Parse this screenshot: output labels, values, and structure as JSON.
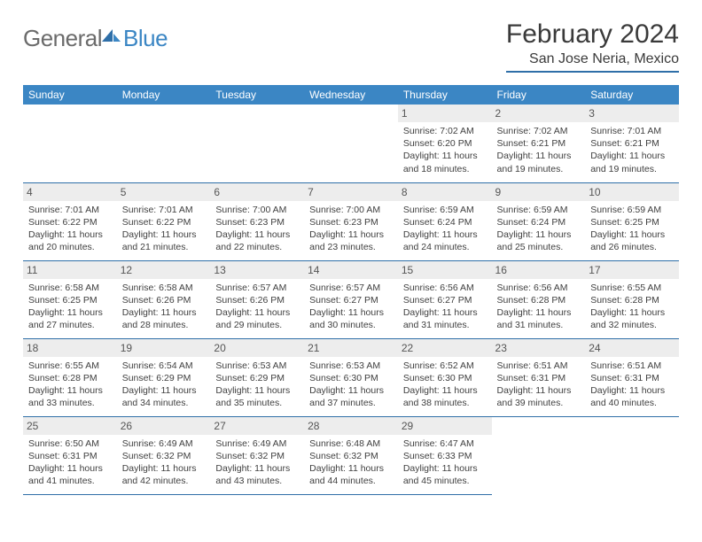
{
  "logo": {
    "part1": "General",
    "part2": "Blue"
  },
  "title": "February 2024",
  "location": "San Jose Neria, Mexico",
  "colors": {
    "header_bg": "#3b86c4",
    "header_text": "#ffffff",
    "rule": "#2f6fa8",
    "daynum_bg": "#ededed",
    "body_text": "#404040",
    "title_text": "#3a3a3a",
    "logo_gray": "#6b6b6b",
    "logo_blue": "#3b86c4"
  },
  "weekdays": [
    "Sunday",
    "Monday",
    "Tuesday",
    "Wednesday",
    "Thursday",
    "Friday",
    "Saturday"
  ],
  "first_weekday_index": 4,
  "days": [
    {
      "n": 1,
      "sunrise": "7:02 AM",
      "sunset": "6:20 PM",
      "daylight": "11 hours and 18 minutes."
    },
    {
      "n": 2,
      "sunrise": "7:02 AM",
      "sunset": "6:21 PM",
      "daylight": "11 hours and 19 minutes."
    },
    {
      "n": 3,
      "sunrise": "7:01 AM",
      "sunset": "6:21 PM",
      "daylight": "11 hours and 19 minutes."
    },
    {
      "n": 4,
      "sunrise": "7:01 AM",
      "sunset": "6:22 PM",
      "daylight": "11 hours and 20 minutes."
    },
    {
      "n": 5,
      "sunrise": "7:01 AM",
      "sunset": "6:22 PM",
      "daylight": "11 hours and 21 minutes."
    },
    {
      "n": 6,
      "sunrise": "7:00 AM",
      "sunset": "6:23 PM",
      "daylight": "11 hours and 22 minutes."
    },
    {
      "n": 7,
      "sunrise": "7:00 AM",
      "sunset": "6:23 PM",
      "daylight": "11 hours and 23 minutes."
    },
    {
      "n": 8,
      "sunrise": "6:59 AM",
      "sunset": "6:24 PM",
      "daylight": "11 hours and 24 minutes."
    },
    {
      "n": 9,
      "sunrise": "6:59 AM",
      "sunset": "6:24 PM",
      "daylight": "11 hours and 25 minutes."
    },
    {
      "n": 10,
      "sunrise": "6:59 AM",
      "sunset": "6:25 PM",
      "daylight": "11 hours and 26 minutes."
    },
    {
      "n": 11,
      "sunrise": "6:58 AM",
      "sunset": "6:25 PM",
      "daylight": "11 hours and 27 minutes."
    },
    {
      "n": 12,
      "sunrise": "6:58 AM",
      "sunset": "6:26 PM",
      "daylight": "11 hours and 28 minutes."
    },
    {
      "n": 13,
      "sunrise": "6:57 AM",
      "sunset": "6:26 PM",
      "daylight": "11 hours and 29 minutes."
    },
    {
      "n": 14,
      "sunrise": "6:57 AM",
      "sunset": "6:27 PM",
      "daylight": "11 hours and 30 minutes."
    },
    {
      "n": 15,
      "sunrise": "6:56 AM",
      "sunset": "6:27 PM",
      "daylight": "11 hours and 31 minutes."
    },
    {
      "n": 16,
      "sunrise": "6:56 AM",
      "sunset": "6:28 PM",
      "daylight": "11 hours and 31 minutes."
    },
    {
      "n": 17,
      "sunrise": "6:55 AM",
      "sunset": "6:28 PM",
      "daylight": "11 hours and 32 minutes."
    },
    {
      "n": 18,
      "sunrise": "6:55 AM",
      "sunset": "6:28 PM",
      "daylight": "11 hours and 33 minutes."
    },
    {
      "n": 19,
      "sunrise": "6:54 AM",
      "sunset": "6:29 PM",
      "daylight": "11 hours and 34 minutes."
    },
    {
      "n": 20,
      "sunrise": "6:53 AM",
      "sunset": "6:29 PM",
      "daylight": "11 hours and 35 minutes."
    },
    {
      "n": 21,
      "sunrise": "6:53 AM",
      "sunset": "6:30 PM",
      "daylight": "11 hours and 37 minutes."
    },
    {
      "n": 22,
      "sunrise": "6:52 AM",
      "sunset": "6:30 PM",
      "daylight": "11 hours and 38 minutes."
    },
    {
      "n": 23,
      "sunrise": "6:51 AM",
      "sunset": "6:31 PM",
      "daylight": "11 hours and 39 minutes."
    },
    {
      "n": 24,
      "sunrise": "6:51 AM",
      "sunset": "6:31 PM",
      "daylight": "11 hours and 40 minutes."
    },
    {
      "n": 25,
      "sunrise": "6:50 AM",
      "sunset": "6:31 PM",
      "daylight": "11 hours and 41 minutes."
    },
    {
      "n": 26,
      "sunrise": "6:49 AM",
      "sunset": "6:32 PM",
      "daylight": "11 hours and 42 minutes."
    },
    {
      "n": 27,
      "sunrise": "6:49 AM",
      "sunset": "6:32 PM",
      "daylight": "11 hours and 43 minutes."
    },
    {
      "n": 28,
      "sunrise": "6:48 AM",
      "sunset": "6:32 PM",
      "daylight": "11 hours and 44 minutes."
    },
    {
      "n": 29,
      "sunrise": "6:47 AM",
      "sunset": "6:33 PM",
      "daylight": "11 hours and 45 minutes."
    }
  ],
  "labels": {
    "sunrise": "Sunrise:",
    "sunset": "Sunset:",
    "daylight": "Daylight:"
  }
}
